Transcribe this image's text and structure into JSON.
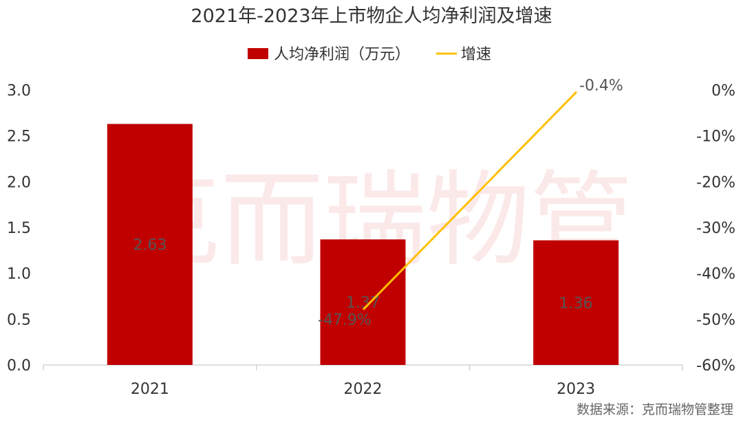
{
  "watermark": "克而瑞物管",
  "source": "数据来源：克而瑞物管整理",
  "colors": {
    "bar": "#c00000",
    "line": "#ffc000",
    "axis": "#bfbfbf"
  },
  "chart_data": {
    "type": "bar",
    "title": "2021年-2023年上市物企人均净利润及增速",
    "categories": [
      "2021",
      "2022",
      "2023"
    ],
    "legend_position": "top",
    "grid": false,
    "series": [
      {
        "name": "人均净利润（万元）",
        "type": "bar",
        "axis": "left",
        "values": [
          2.63,
          1.37,
          1.36
        ],
        "labels": [
          "2.63",
          "1.37",
          "1.36"
        ]
      },
      {
        "name": "增速",
        "type": "line",
        "axis": "right",
        "values": [
          null,
          -47.9,
          -0.4
        ],
        "labels": [
          "",
          "-47.9%",
          "-0.4%"
        ]
      }
    ],
    "y_left": {
      "ylim": [
        0,
        3.0
      ],
      "ticks": [
        "0.0",
        "0.5",
        "1.0",
        "1.5",
        "2.0",
        "2.5",
        "3.0"
      ]
    },
    "y_right": {
      "ylim": [
        -60,
        0
      ],
      "ticks": [
        "-60%",
        "-50%",
        "-40%",
        "-30%",
        "-20%",
        "-10%",
        "0%"
      ]
    }
  }
}
